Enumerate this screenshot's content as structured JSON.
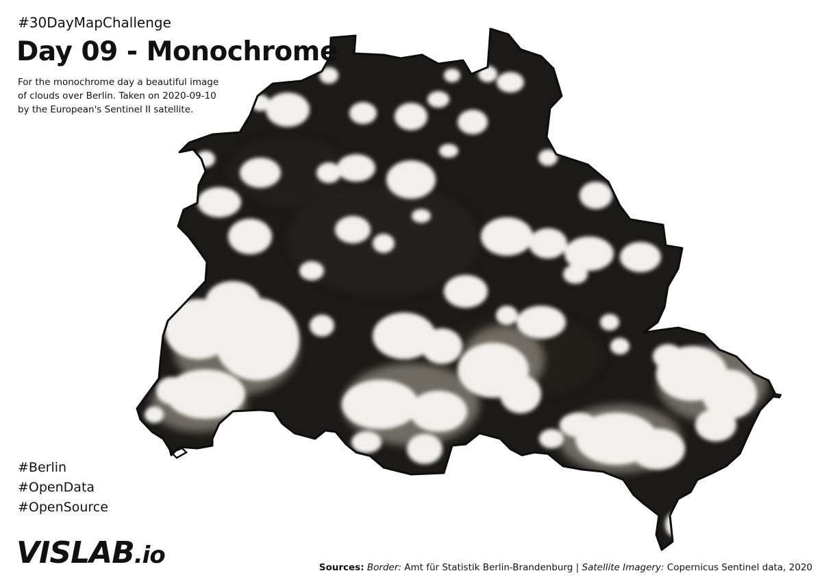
{
  "header": {
    "challenge": "#30DayMapChallenge",
    "title": "Day 09 - Monochrome",
    "description_lines": [
      "For the monochrome day a beautiful image",
      "of clouds over Berlin. Taken on 2020-09-10",
      "by the European's Sentinel II satellite."
    ]
  },
  "hashtags": [
    "#Berlin",
    "#OpenData",
    "#OpenSource"
  ],
  "logo": {
    "main": "VISLAB",
    "sub": ".io"
  },
  "sources": {
    "label": "Sources:",
    "border_label": "Border:",
    "border_value": "Amt für Statistik Berlin-Brandenburg",
    "separator": "|",
    "imagery_label": "Satellite Imagery:",
    "imagery_value": "Copernicus Sentinel data, 2020"
  },
  "map": {
    "region": "Berlin",
    "imagery": "cloud-satellite-image",
    "colors": {
      "land": "#1c1a17",
      "cloud": "#f2f0ec",
      "cloud_shade": "#b9b3a9",
      "border": "#0d0d0d"
    }
  }
}
